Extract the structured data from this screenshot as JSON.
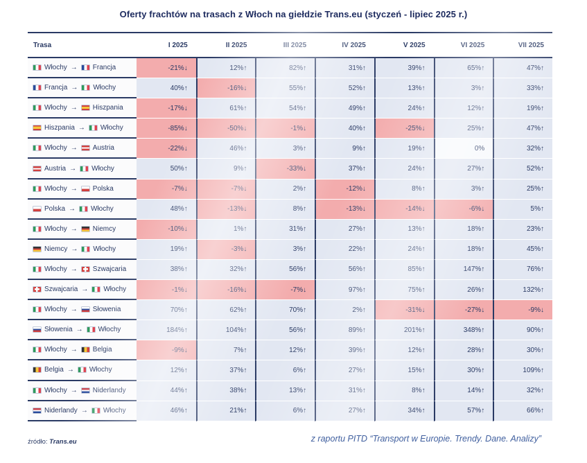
{
  "title": "Oferty frachtów na trasach z Włoch na giełdzie Trans.eu (styczeń - lipiec 2025 r.)",
  "table": {
    "route_header": "Trasa",
    "arrow": "→",
    "up_arrow": "↑",
    "down_arrow": "↓"
  },
  "footer": {
    "source_label": "źródło:",
    "source_name": "Trans.eu",
    "note": "z raportu PITD “Transport w Europie. Trendy. Dane. Analizy”"
  },
  "colors": {
    "negative_bg": "#F3ACAD",
    "positive_bg": "#E2E7F2",
    "zero_bg": "#F7F9FC",
    "navy": "#2A3A64",
    "title_navy": "#1C2A5E",
    "note_blue": "#41609F",
    "route_bg": "#FBFBFC"
  },
  "chart_data": {
    "type": "table",
    "title": "Oferty frachtów na trasach z Włoch na giełdzie Trans.eu (styczeń - lipiec 2025 r.)",
    "unit": "%",
    "categories": [
      "I 2025",
      "II 2025",
      "III 2025",
      "IV 2025",
      "V 2025",
      "VI 2025",
      "VII 2025"
    ],
    "series": [
      {
        "name": "Włochy → Francja",
        "from": "Włochy",
        "from_flag": "it",
        "to": "Francja",
        "to_flag": "fr",
        "values": [
          -21,
          12,
          82,
          31,
          39,
          65,
          47
        ]
      },
      {
        "name": "Francja → Włochy",
        "from": "Francja",
        "from_flag": "fr",
        "to": "Włochy",
        "to_flag": "it",
        "values": [
          40,
          -16,
          55,
          52,
          13,
          3,
          33
        ]
      },
      {
        "name": "Włochy → Hiszpania",
        "from": "Włochy",
        "from_flag": "it",
        "to": "Hiszpania",
        "to_flag": "es",
        "values": [
          -17,
          61,
          54,
          49,
          24,
          12,
          19
        ]
      },
      {
        "name": "Hiszpania → Włochy",
        "from": "Hiszpania",
        "from_flag": "es",
        "to": "Włochy",
        "to_flag": "it",
        "values": [
          -85,
          -50,
          -1,
          40,
          -25,
          25,
          47
        ]
      },
      {
        "name": "Włochy → Austria",
        "from": "Włochy",
        "from_flag": "it",
        "to": "Austria",
        "to_flag": "at",
        "values": [
          -22,
          46,
          3,
          9,
          19,
          0,
          32
        ]
      },
      {
        "name": "Austria → Włochy",
        "from": "Austria",
        "from_flag": "at",
        "to": "Włochy",
        "to_flag": "it",
        "values": [
          50,
          9,
          -33,
          37,
          24,
          27,
          52
        ]
      },
      {
        "name": "Włochy → Polska",
        "from": "Włochy",
        "from_flag": "it",
        "to": "Polska",
        "to_flag": "pl",
        "values": [
          -7,
          -7,
          2,
          -12,
          8,
          3,
          25
        ]
      },
      {
        "name": "Polska → Włochy",
        "from": "Polska",
        "from_flag": "pl",
        "to": "Włochy",
        "to_flag": "it",
        "values": [
          48,
          -13,
          8,
          -13,
          -14,
          -6,
          5
        ]
      },
      {
        "name": "Włochy → Niemcy",
        "from": "Włochy",
        "from_flag": "it",
        "to": "Niemcy",
        "to_flag": "de",
        "values": [
          -10,
          1,
          31,
          27,
          13,
          18,
          23
        ]
      },
      {
        "name": "Niemcy → Włochy",
        "from": "Niemcy",
        "from_flag": "de",
        "to": "Włochy",
        "to_flag": "it",
        "values": [
          19,
          -3,
          3,
          22,
          24,
          18,
          45
        ]
      },
      {
        "name": "Włochy → Szwajcaria",
        "from": "Włochy",
        "from_flag": "it",
        "to": "Szwajcaria",
        "to_flag": "ch",
        "values": [
          38,
          32,
          56,
          56,
          85,
          147,
          76
        ]
      },
      {
        "name": "Szwajcaria → Włochy",
        "from": "Szwajcaria",
        "from_flag": "ch",
        "to": "Włochy",
        "to_flag": "it",
        "values": [
          -1,
          -16,
          -7,
          97,
          75,
          26,
          132
        ]
      },
      {
        "name": "Włochy → Słowenia",
        "from": "Włochy",
        "from_flag": "it",
        "to": "Słowenia",
        "to_flag": "si",
        "values": [
          70,
          62,
          70,
          2,
          -31,
          -27,
          -9
        ]
      },
      {
        "name": "Słowenia → Włochy",
        "from": "Słowenia",
        "from_flag": "si",
        "to": "Włochy",
        "to_flag": "it",
        "values": [
          184,
          104,
          56,
          89,
          201,
          348,
          90
        ]
      },
      {
        "name": "Włochy → Belgia",
        "from": "Włochy",
        "from_flag": "it",
        "to": "Belgia",
        "to_flag": "be",
        "values": [
          -9,
          7,
          12,
          39,
          12,
          28,
          30
        ]
      },
      {
        "name": "Belgia → Włochy",
        "from": "Belgia",
        "from_flag": "be",
        "to": "Włochy",
        "to_flag": "it",
        "values": [
          12,
          37,
          6,
          27,
          15,
          30,
          109
        ]
      },
      {
        "name": "Włochy → Niderlandy",
        "from": "Włochy",
        "from_flag": "it",
        "to": "Niderlandy",
        "to_flag": "nl",
        "values": [
          44,
          38,
          13,
          31,
          8,
          14,
          32
        ]
      },
      {
        "name": "Niderlandy → Włochy",
        "from": "Niderlandy",
        "from_flag": "nl",
        "to": "Włochy",
        "to_flag": "it",
        "values": [
          46,
          21,
          6,
          27,
          34,
          57,
          66
        ]
      }
    ],
    "cell_color_rule": "negative=pink, zero=near-white, positive=light-blue",
    "legend_position": "none",
    "grid": "column separators dark navy"
  }
}
